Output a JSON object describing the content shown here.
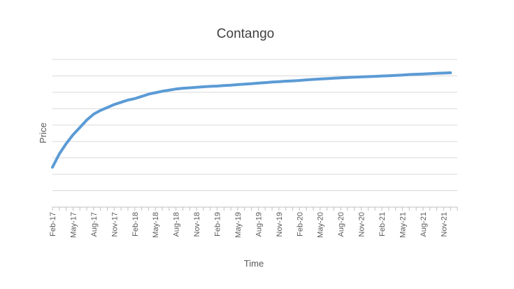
{
  "chart_data": {
    "type": "line",
    "title": "Contango",
    "xlabel": "Time",
    "ylabel": "Price",
    "grid": true,
    "legend": "none",
    "line_color": "#5b9bd5",
    "ylim": [
      0,
      10
    ],
    "x_tick_labels": [
      "Feb-17",
      "May-17",
      "Aug-17",
      "Nov-17",
      "Feb-18",
      "May-18",
      "Aug-18",
      "Nov-18",
      "Feb-19",
      "May-19",
      "Aug-19",
      "Nov-19",
      "Feb-20",
      "May-20",
      "Aug-20",
      "Nov-20",
      "Feb-21",
      "May-21",
      "Aug-21",
      "Nov-21"
    ],
    "series": [
      {
        "x": [
          "2017-02",
          "2017-03",
          "2017-04",
          "2017-05",
          "2017-06",
          "2017-07",
          "2017-08",
          "2017-09",
          "2017-10",
          "2017-11",
          "2017-12",
          "2018-01",
          "2018-02",
          "2018-03",
          "2018-04",
          "2018-05",
          "2018-06",
          "2018-07",
          "2018-08",
          "2018-09",
          "2018-10",
          "2018-11",
          "2018-12",
          "2019-01",
          "2019-02",
          "2019-03",
          "2019-04",
          "2019-05",
          "2019-06",
          "2019-07",
          "2019-08",
          "2019-09",
          "2019-10",
          "2019-11",
          "2019-12",
          "2020-01",
          "2020-02",
          "2020-03",
          "2020-04",
          "2020-05",
          "2020-06",
          "2020-07",
          "2020-08",
          "2020-09",
          "2020-10",
          "2020-11",
          "2020-12",
          "2021-01",
          "2021-02",
          "2021-03",
          "2021-04",
          "2021-05",
          "2021-06",
          "2021-07",
          "2021-08",
          "2021-09",
          "2021-10",
          "2021-11",
          "2021-12"
        ],
        "values": [
          2.7,
          3.6,
          4.3,
          4.9,
          5.4,
          5.9,
          6.3,
          6.55,
          6.75,
          6.95,
          7.1,
          7.25,
          7.35,
          7.5,
          7.65,
          7.75,
          7.85,
          7.92,
          8.0,
          8.05,
          8.08,
          8.12,
          8.15,
          8.18,
          8.2,
          8.23,
          8.26,
          8.3,
          8.33,
          8.36,
          8.4,
          8.43,
          8.47,
          8.5,
          8.53,
          8.55,
          8.58,
          8.62,
          8.65,
          8.68,
          8.7,
          8.73,
          8.76,
          8.78,
          8.8,
          8.82,
          8.84,
          8.86,
          8.88,
          8.9,
          8.92,
          8.95,
          8.98,
          9.0,
          9.02,
          9.04,
          9.06,
          9.08,
          9.1
        ]
      }
    ]
  }
}
